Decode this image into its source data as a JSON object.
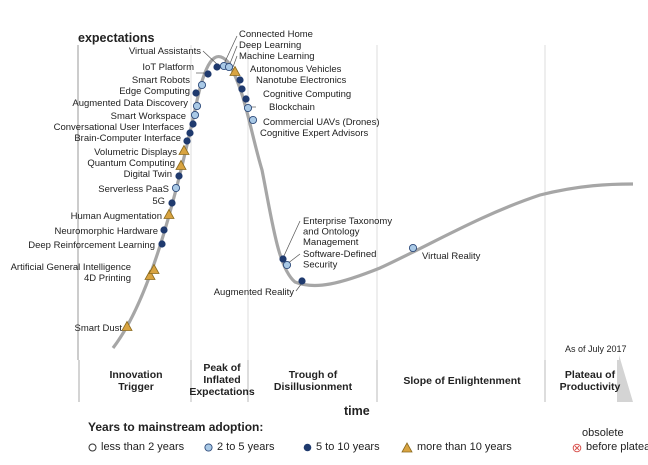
{
  "chart_data": {
    "type": "scatter",
    "title": "",
    "ylabel": "expectations",
    "xlabel": "time",
    "note": "As of July 2017",
    "phases": [
      {
        "name": "Innovation Trigger",
        "lines": [
          "Innovation",
          "Trigger"
        ]
      },
      {
        "name": "Peak of Inflated Expectations",
        "lines": [
          "Peak of",
          "Inflated",
          "Expectations"
        ]
      },
      {
        "name": "Trough of Disillusionment",
        "lines": [
          "Trough of",
          "Disillusionment"
        ]
      },
      {
        "name": "Slope of Enlightenment",
        "lines": [
          "Slope of Enlightenment"
        ]
      },
      {
        "name": "Plateau of Productivity",
        "lines": [
          "Plateau of",
          "Productivity"
        ]
      }
    ],
    "technologies": [
      {
        "name": "Smart Dust",
        "years": "more than 10 years"
      },
      {
        "name": "4D Printing",
        "years": "more than 10 years"
      },
      {
        "name": "Artificial General Intelligence",
        "years": "more than 10 years"
      },
      {
        "name": "Deep Reinforcement Learning",
        "years": "5 to 10 years"
      },
      {
        "name": "Neuromorphic Hardware",
        "years": "5 to 10 years"
      },
      {
        "name": "Human Augmentation",
        "years": "more than 10 years"
      },
      {
        "name": "5G",
        "years": "5 to 10 years"
      },
      {
        "name": "Serverless PaaS",
        "years": "2 to 5 years"
      },
      {
        "name": "Digital Twin",
        "years": "5 to 10 years"
      },
      {
        "name": "Quantum Computing",
        "years": "more than 10 years"
      },
      {
        "name": "Volumetric Displays",
        "years": "more than 10 years"
      },
      {
        "name": "Brain-Computer Interface",
        "years": "5 to 10 years"
      },
      {
        "name": "Conversational User Interfaces",
        "years": "5 to 10 years"
      },
      {
        "name": "Smart Workspace",
        "years": "5 to 10 years"
      },
      {
        "name": "Augmented Data Discovery",
        "years": "2 to 5 years"
      },
      {
        "name": "Edge Computing",
        "years": "2 to 5 years"
      },
      {
        "name": "Smart Robots",
        "years": "5 to 10 years"
      },
      {
        "name": "IoT Platform",
        "years": "2 to 5 years"
      },
      {
        "name": "Virtual Assistants",
        "years": "5 to 10 years"
      },
      {
        "name": "Connected Home",
        "years": "5 to 10 years"
      },
      {
        "name": "Deep Learning",
        "years": "2 to 5 years"
      },
      {
        "name": "Machine Learning",
        "years": "2 to 5 years"
      },
      {
        "name": "Autonomous Vehicles",
        "years": "more than 10 years"
      },
      {
        "name": "Nanotube Electronics",
        "years": "5 to 10 years"
      },
      {
        "name": "Cognitive Computing",
        "years": "5 to 10 years"
      },
      {
        "name": "Blockchain",
        "years": "5 to 10 years"
      },
      {
        "name": "Commercial UAVs (Drones)",
        "years": "2 to 5 years"
      },
      {
        "name": "Cognitive Expert Advisors",
        "years": "2 to 5 years"
      },
      {
        "name": "Enterprise Taxonomy and Ontology Management",
        "years": "5 to 10 years"
      },
      {
        "name": "Software-Defined Security",
        "years": "2 to 5 years"
      },
      {
        "name": "Augmented Reality",
        "years": "5 to 10 years"
      },
      {
        "name": "Virtual Reality",
        "years": "2 to 5 years"
      }
    ]
  },
  "legend": {
    "title": "Years to mainstream adoption:",
    "items": [
      {
        "label": "less than 2 years",
        "marker": "circle-white"
      },
      {
        "label": "2 to 5 years",
        "marker": "circle-lightblue"
      },
      {
        "label": "5 to 10 years",
        "marker": "circle-darkblue"
      },
      {
        "label": "more than 10 years",
        "marker": "triangle-orange"
      }
    ],
    "obsolete_top": "obsolete",
    "obsolete_bottom": "before plateau"
  },
  "colors": {
    "curve": "#a6a6a6",
    "light_blue": "#a9c9e6",
    "dark_blue": "#1f3a6e",
    "orange": "#d9a441",
    "obsolete": "#d9534f"
  }
}
